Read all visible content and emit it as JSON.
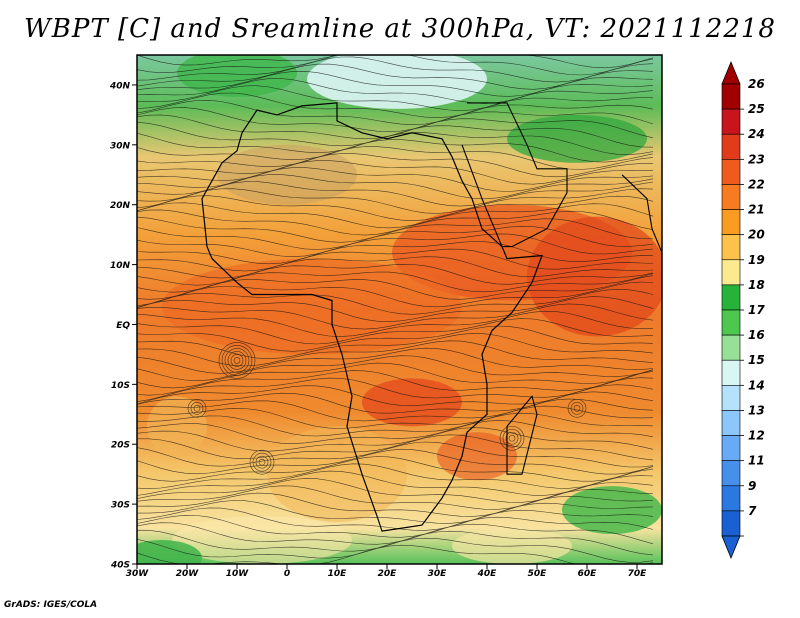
{
  "title": "WBPT [C] and Sreamline at 300hPa, VT: 2021112218",
  "footer": "GrADS: IGES/COLA",
  "map": {
    "lon_range": [
      -30,
      75
    ],
    "lat_range": [
      -40,
      45
    ],
    "lat_ticks": [
      {
        "value": 40,
        "label": "40N"
      },
      {
        "value": 30,
        "label": "30N"
      },
      {
        "value": 20,
        "label": "20N"
      },
      {
        "value": 10,
        "label": "10N"
      },
      {
        "value": 0,
        "label": "EQ"
      },
      {
        "value": -10,
        "label": "10S"
      },
      {
        "value": -20,
        "label": "20S"
      },
      {
        "value": -30,
        "label": "30S"
      },
      {
        "value": -40,
        "label": "40S"
      }
    ],
    "lon_ticks": [
      {
        "value": -30,
        "label": "30W"
      },
      {
        "value": -20,
        "label": "20W"
      },
      {
        "value": -10,
        "label": "10W"
      },
      {
        "value": 0,
        "label": "0"
      },
      {
        "value": 10,
        "label": "10E"
      },
      {
        "value": 20,
        "label": "20E"
      },
      {
        "value": 30,
        "label": "30E"
      },
      {
        "value": 40,
        "label": "40E"
      },
      {
        "value": 50,
        "label": "50E"
      },
      {
        "value": 60,
        "label": "60E"
      },
      {
        "value": 70,
        "label": "70E"
      }
    ]
  },
  "colorbar": {
    "levels": [
      {
        "label": "26",
        "color": "#a00000"
      },
      {
        "label": "25",
        "color": "#c8141c"
      },
      {
        "label": "24",
        "color": "#e03c1c"
      },
      {
        "label": "23",
        "color": "#f05a1e"
      },
      {
        "label": "22",
        "color": "#f77b20"
      },
      {
        "label": "21",
        "color": "#fa9c22"
      },
      {
        "label": "20",
        "color": "#fcc24a"
      },
      {
        "label": "19",
        "color": "#fde98f"
      },
      {
        "label": "18",
        "color": "#27b33a"
      },
      {
        "label": "17",
        "color": "#4cc84e"
      },
      {
        "label": "16",
        "color": "#96e196"
      },
      {
        "label": "15",
        "color": "#d8f6f2"
      },
      {
        "label": "14",
        "color": "#b4e2fc"
      },
      {
        "label": "13",
        "color": "#8cc6fc"
      },
      {
        "label": "12",
        "color": "#68aaf6"
      },
      {
        "label": "11",
        "color": "#4690ec"
      },
      {
        "label": "9",
        "color": "#2a78e0"
      },
      {
        "label": "7",
        "color": "#1a60d2"
      }
    ]
  },
  "colors": {
    "background": "#ffffff",
    "streamline": "#111111"
  }
}
